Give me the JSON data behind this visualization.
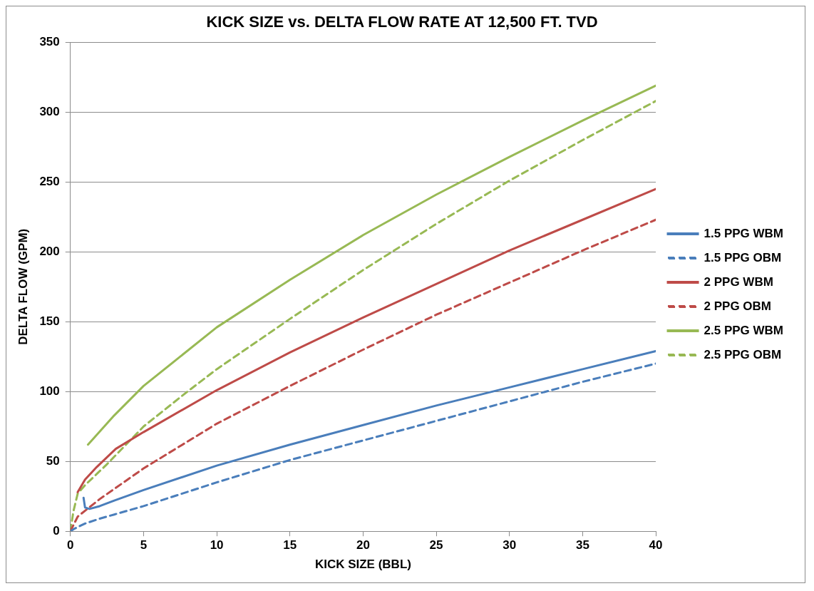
{
  "chart_data": {
    "type": "line",
    "title": "KICK SIZE vs. DELTA FLOW RATE AT 12,500 FT. TVD",
    "xlabel": "KICK SIZE (BBL)",
    "ylabel": "DELTA FLOW (GPM)",
    "xlim": [
      0,
      40
    ],
    "xticks": [
      0,
      5,
      10,
      15,
      20,
      25,
      30,
      35,
      40
    ],
    "ylim": [
      0,
      350
    ],
    "yticks": [
      0,
      50,
      100,
      150,
      200,
      250,
      300,
      350
    ],
    "grid": "y",
    "legend": "right",
    "marker": "none",
    "series": [
      {
        "name": "1.5 PPG WBM",
        "color": "#4a7ebb",
        "line_style": "solid",
        "x": [
          0.9,
          1,
          1.3,
          2,
          3,
          5,
          10,
          15,
          20,
          25,
          30,
          35,
          40
        ],
        "values": [
          24,
          17,
          16,
          18,
          22,
          29.5,
          47,
          62,
          76,
          90,
          103,
          116,
          129
        ]
      },
      {
        "name": "1.5 PPG OBM",
        "color": "#4a7ebb",
        "line_style": "dashed",
        "x": [
          0,
          0.3,
          1,
          2,
          3,
          5,
          10,
          15,
          20,
          25,
          30,
          35,
          40
        ],
        "values": [
          0,
          2,
          5.5,
          9,
          12,
          18,
          35,
          51,
          65,
          79,
          93,
          107,
          120
        ]
      },
      {
        "name": "2 PPG WBM",
        "color": "#be4b48",
        "line_style": "solid",
        "x": [
          0.5,
          1,
          1.8,
          3.1,
          5,
          10,
          15,
          20,
          25,
          30,
          35,
          40
        ],
        "values": [
          28,
          37,
          46,
          59,
          71,
          101,
          128,
          153,
          177,
          201,
          223,
          245
        ]
      },
      {
        "name": "2 PPG OBM",
        "color": "#be4b48",
        "line_style": "dashed",
        "x": [
          0,
          0.5,
          2,
          5,
          10,
          15,
          20,
          25,
          30,
          35,
          40
        ],
        "values": [
          0,
          10.5,
          23,
          45,
          77,
          104,
          130,
          155,
          178,
          201,
          223
        ]
      },
      {
        "name": "2.5 PPG WBM",
        "color": "#98b954",
        "line_style": "solid",
        "x": [
          1.2,
          3,
          5,
          10,
          15,
          20,
          25,
          30,
          35,
          40
        ],
        "values": [
          62,
          83,
          104,
          146,
          180,
          212,
          241,
          268,
          294,
          319
        ]
      },
      {
        "name": "2.5 PPG OBM",
        "color": "#98b954",
        "line_style": "dashed",
        "x": [
          0,
          0.2,
          0.5,
          1,
          2.5,
          5,
          8,
          10,
          15,
          20,
          25,
          30,
          35,
          40
        ],
        "values": [
          0,
          14,
          27,
          33,
          48,
          75,
          100,
          116,
          152,
          187,
          220,
          251,
          280,
          308
        ]
      }
    ]
  }
}
